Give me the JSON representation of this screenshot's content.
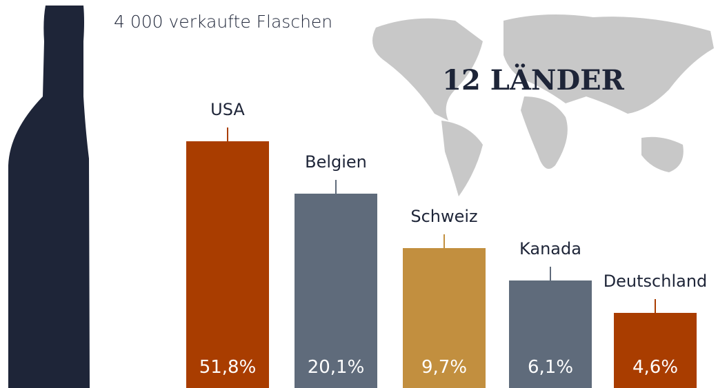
{
  "headline": "12 LÄNDER",
  "subtitle": "4 000 verkaufte Flaschen",
  "bars": [
    {
      "label": "USA",
      "value": "51,8%"
    },
    {
      "label": "Belgien",
      "value": "20,1%"
    },
    {
      "label": "Schweiz",
      "value": "9,7%"
    },
    {
      "label": "Kanada",
      "value": "6,1%"
    },
    {
      "label": "Deutschland",
      "value": "4,6%"
    }
  ]
}
